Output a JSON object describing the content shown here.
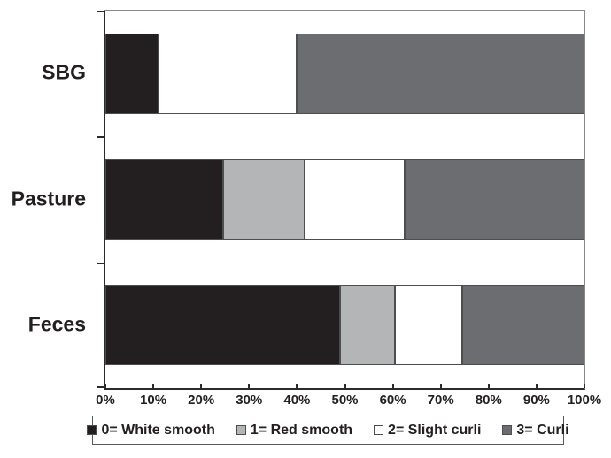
{
  "colors": {
    "black": "#231f20",
    "light_gray": "#b4b5b7",
    "white": "#ffffff",
    "dark_gray": "#6c6d70",
    "segment_border": "#4d4e50",
    "axis": "#2b2b2d",
    "frame": "#87898b",
    "text": "#231f20"
  },
  "chart_data": {
    "type": "bar",
    "orientation": "horizontal",
    "stacked": true,
    "title": "",
    "xlabel": "",
    "ylabel": "",
    "xlim": [
      0,
      100
    ],
    "grid": false,
    "legend_position": "bottom",
    "categories": [
      "SBG",
      "Pasture",
      "Feces"
    ],
    "series": [
      {
        "name": "0= White smooth",
        "color_key": "black",
        "values": [
          11,
          24.5,
          49
        ]
      },
      {
        "name": "1= Red smooth",
        "color_key": "light_gray",
        "values": [
          0,
          17,
          11.5
        ]
      },
      {
        "name": "2= Slight curli",
        "color_key": "white",
        "values": [
          29,
          21,
          14
        ]
      },
      {
        "name": "3= Curli",
        "color_key": "dark_gray",
        "values": [
          60,
          37.5,
          25.5
        ]
      }
    ],
    "x_ticks": [
      "0%",
      "10%",
      "20%",
      "30%",
      "40%",
      "50%",
      "60%",
      "70%",
      "80%",
      "90%",
      "100%"
    ]
  }
}
